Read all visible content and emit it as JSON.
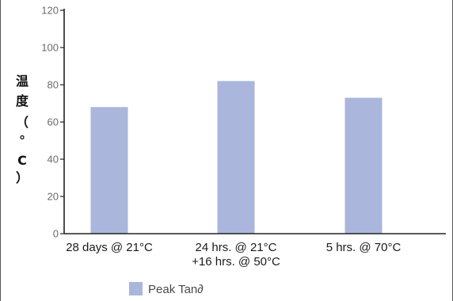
{
  "chart_data": {
    "type": "bar",
    "categories": [
      [
        "28 days @ 21°C"
      ],
      [
        "24 hrs. @ 21°C",
        "+16 hrs. @ 50°C"
      ],
      [
        "5 hrs. @ 70°C"
      ]
    ],
    "series": [
      {
        "name": "Peak Tan∂",
        "values": [
          68,
          82,
          73
        ]
      }
    ],
    "ylabel": "温度（°C）",
    "ylabel_chars": [
      "温",
      "度",
      "（",
      "°",
      "C",
      "）"
    ],
    "ylim": [
      0,
      120
    ],
    "yticks": [
      0,
      20,
      40,
      60,
      80,
      100,
      120
    ],
    "grid": false,
    "legend": "bottom-left",
    "colors": {
      "bar": "#aab6db",
      "axis": "#222222",
      "tick_text": "#6b6b6b"
    }
  }
}
